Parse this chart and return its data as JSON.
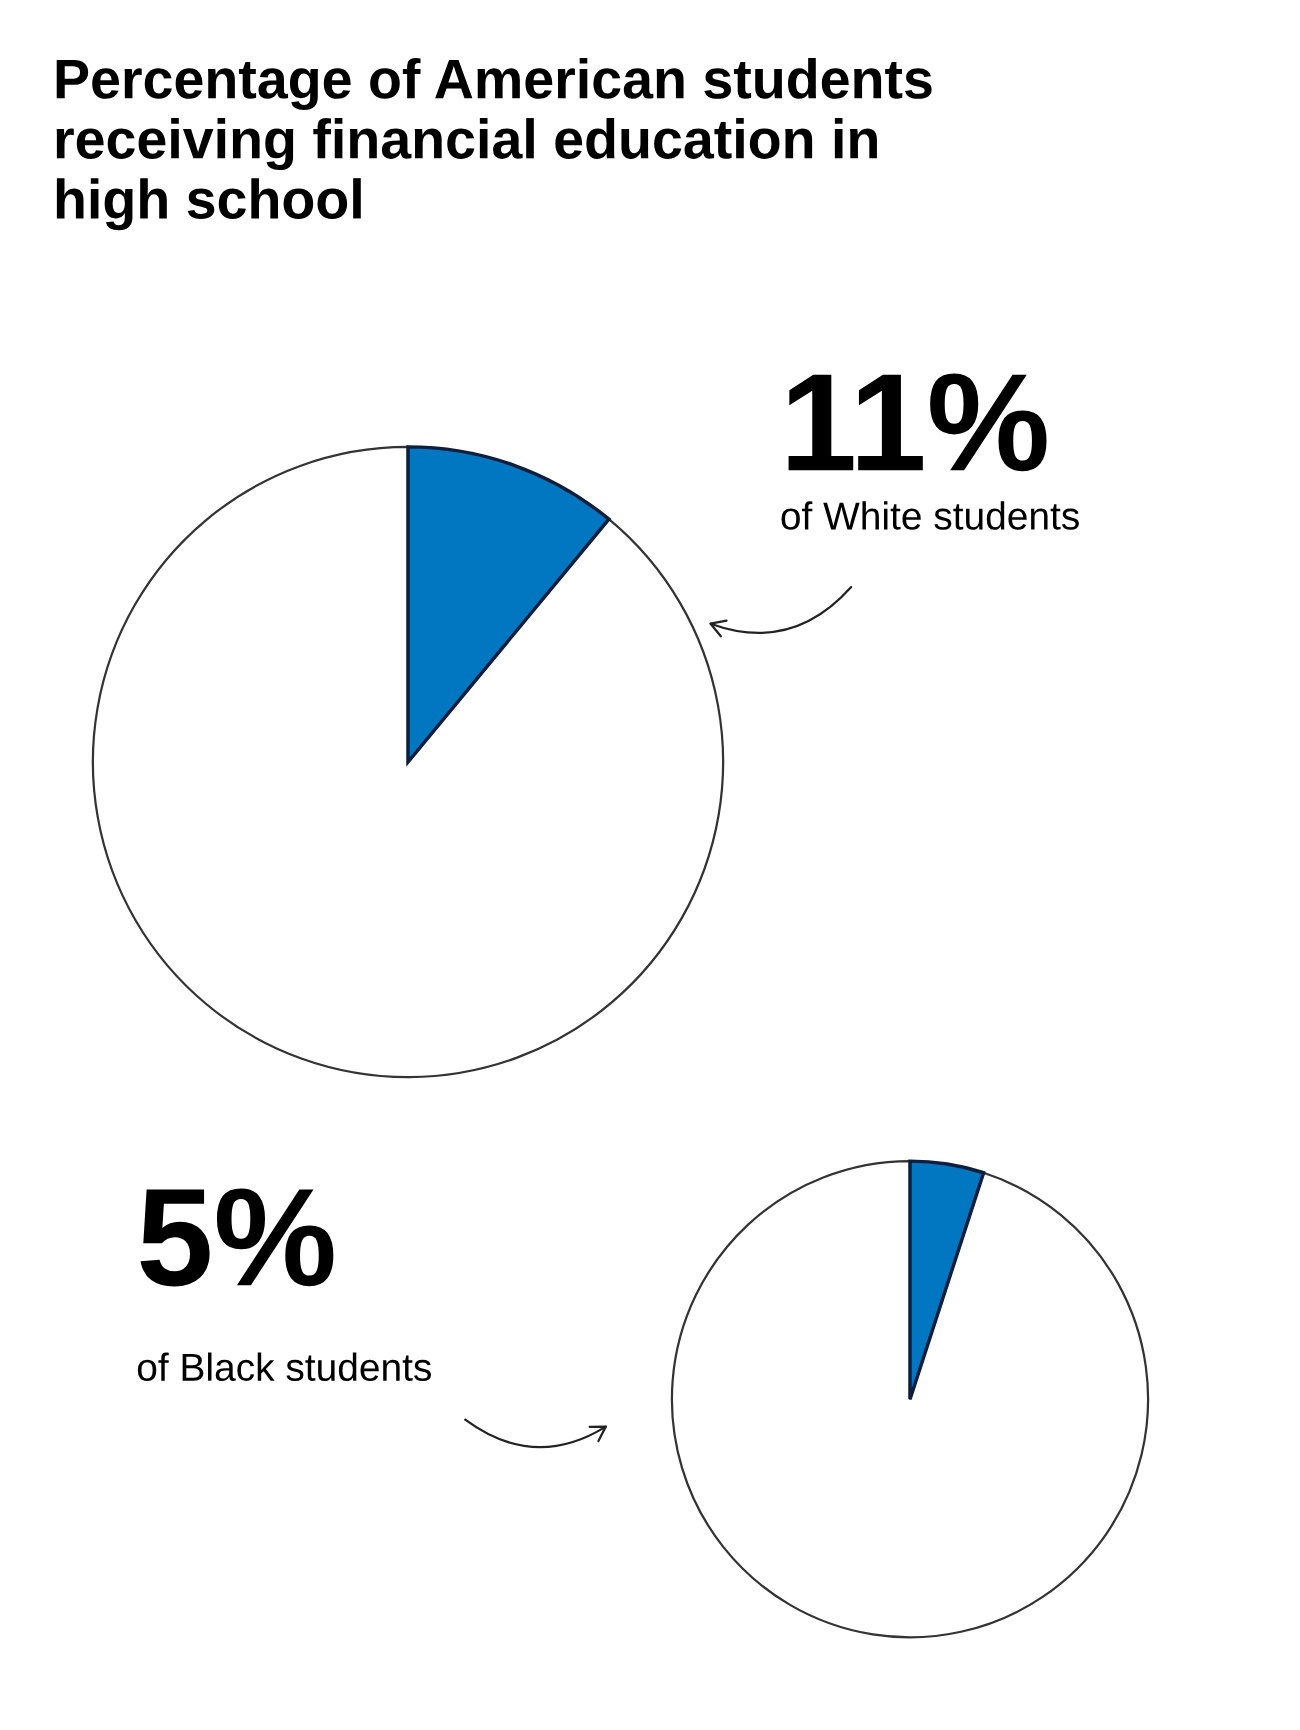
{
  "chart_data": [
    {
      "type": "pie",
      "title": "Percentage of American students\nreceiving financial education in\nhigh school",
      "categories": [
        null,
        null
      ],
      "values": [
        11,
        89
      ],
      "colors": [
        "#0077c0",
        "#ffffff"
      ],
      "annotations": [
        "11%",
        "of White students"
      ]
    },
    {
      "type": "pie",
      "categories": [
        null,
        null
      ],
      "values": [
        5,
        95
      ],
      "colors": [
        "#0077c0",
        "#ffffff"
      ],
      "annotations": [
        "5%",
        "of Black students"
      ]
    }
  ]
}
